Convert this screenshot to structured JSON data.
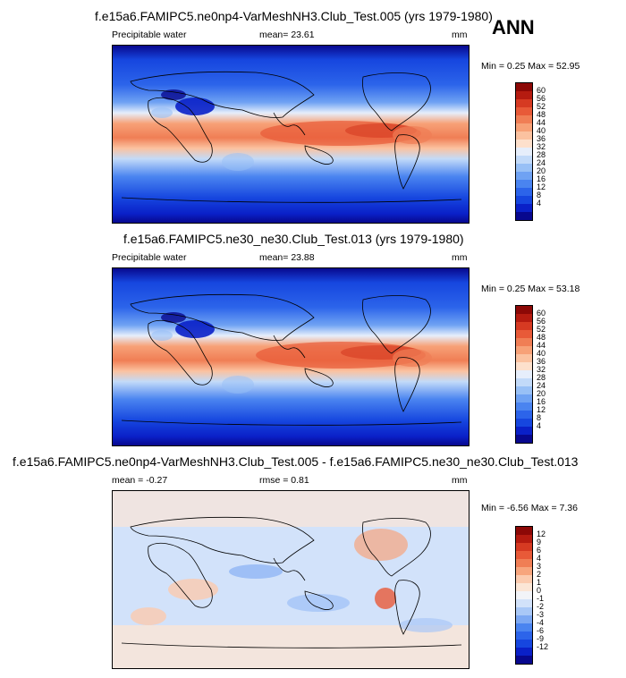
{
  "season": "ANN",
  "panels": [
    {
      "title": "f.e15a6.FAMIPC5.ne0np4-VarMeshNH3.Club_Test.005 (yrs 1979-1980)",
      "left_label": "Precipitable water",
      "center_label": "mean=  23.61",
      "units": "mm",
      "minmax": "Min =   0.25 Max =  52.95",
      "colors": [
        "#08088e",
        "#0a20c8",
        "#1646df",
        "#2c64ea",
        "#4a84f0",
        "#6fa2f3",
        "#98c0f6",
        "#c2daf9",
        "#e6eefb",
        "#fde0cc",
        "#fbc2a0",
        "#f7a177",
        "#f07e55",
        "#e85a38",
        "#d63a22",
        "#b51b10",
        "#8c0806"
      ],
      "labels": [
        "4",
        "8",
        "12",
        "16",
        "20",
        "24",
        "28",
        "32",
        "36",
        "40",
        "44",
        "48",
        "52",
        "56",
        "60"
      ]
    },
    {
      "title": "f.e15a6.FAMIPC5.ne30_ne30.Club_Test.013 (yrs 1979-1980)",
      "left_label": "Precipitable water",
      "center_label": "mean=  23.88",
      "units": "mm",
      "minmax": "Min =   0.25 Max =  53.18",
      "colors": [
        "#08088e",
        "#0a20c8",
        "#1646df",
        "#2c64ea",
        "#4a84f0",
        "#6fa2f3",
        "#98c0f6",
        "#c2daf9",
        "#e6eefb",
        "#fde0cc",
        "#fbc2a0",
        "#f7a177",
        "#f07e55",
        "#e85a38",
        "#d63a22",
        "#b51b10",
        "#8c0806"
      ],
      "labels": [
        "4",
        "8",
        "12",
        "16",
        "20",
        "24",
        "28",
        "32",
        "36",
        "40",
        "44",
        "48",
        "52",
        "56",
        "60"
      ]
    },
    {
      "title": "f.e15a6.FAMIPC5.ne0np4-VarMeshNH3.Club_Test.005 - f.e15a6.FAMIPC5.ne30_ne30.Club_Test.013",
      "left_label": "mean =  -0.27",
      "center_label": "rmse =   0.81",
      "units": "mm",
      "minmax": "Min =  -6.56 Max =   7.36",
      "colors": [
        "#08088e",
        "#0a20c8",
        "#1646df",
        "#2c64ea",
        "#4a84f0",
        "#7ca8f3",
        "#a9c8f7",
        "#d2e2fa",
        "#f2f4f8",
        "#fbe6d6",
        "#fbcbaf",
        "#f7a57d",
        "#f07e55",
        "#e85a38",
        "#d63a22",
        "#b51b10",
        "#8c0806"
      ],
      "labels": [
        "-12",
        "-9",
        "-6",
        "-4",
        "-3",
        "-2",
        "-1",
        "0",
        "1",
        "2",
        "3",
        "4",
        "6",
        "9",
        "12"
      ]
    }
  ]
}
